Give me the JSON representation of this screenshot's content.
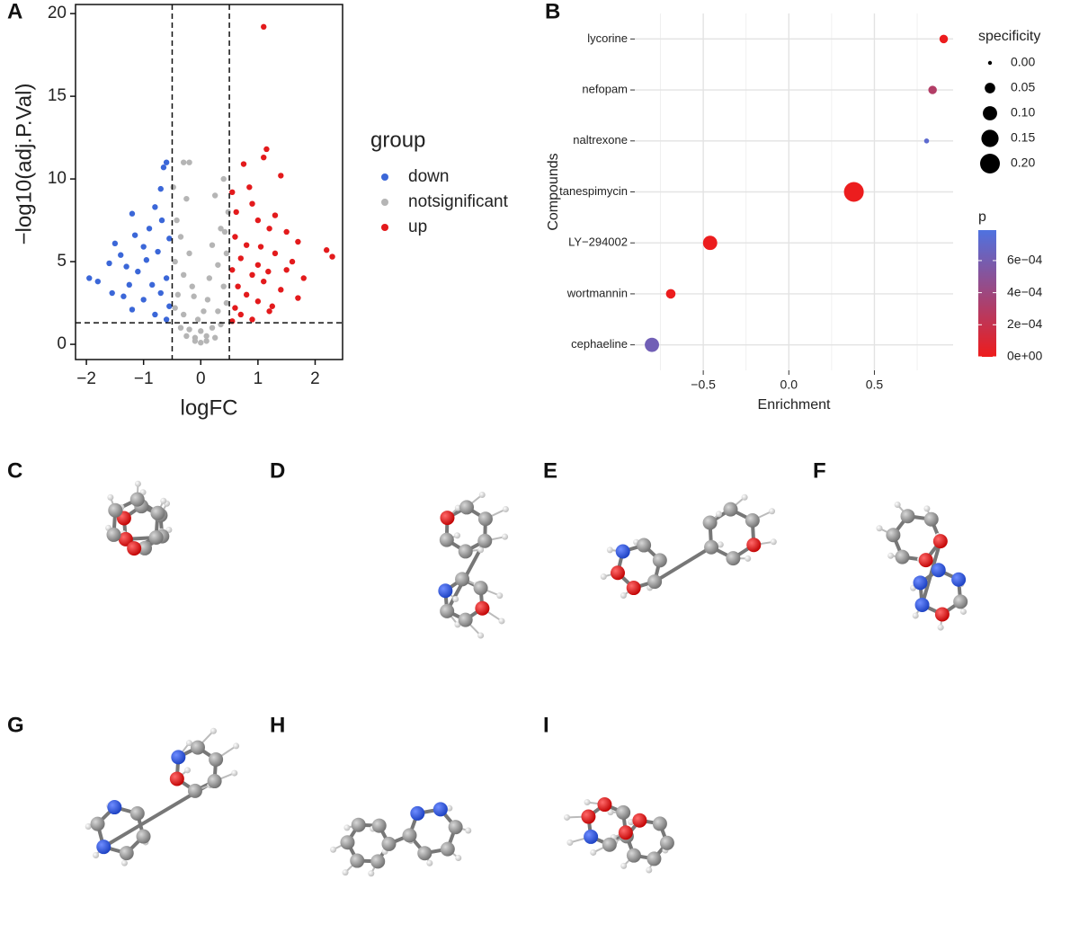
{
  "panels": [
    "A",
    "B",
    "C",
    "D",
    "E",
    "F",
    "G",
    "H",
    "I"
  ],
  "chart_data": [
    {
      "type": "scatter",
      "xlabel": "logFC",
      "ylabel": "−log10(adj.P.Val)",
      "legend_title": "group",
      "xlim": [
        -2.19,
        2.48
      ],
      "ylim": [
        -0.92,
        20.55
      ],
      "xticks": [
        {
          "value": -2,
          "label": "−2"
        },
        {
          "value": -1,
          "label": "−1"
        },
        0,
        1,
        2
      ],
      "yticks": [
        0,
        5,
        10,
        15,
        20
      ],
      "vlines": [
        -0.5,
        0.5
      ],
      "hline": 1.3,
      "grid": false,
      "series": [
        {
          "name": "down",
          "color": "#3b67d8",
          "x": [
            -1.95,
            -1.8,
            -1.5,
            -1.4,
            -1.3,
            -1.6,
            -0.6,
            -0.65,
            -0.8,
            -1.2,
            -0.9,
            -0.7,
            -1.0,
            -0.55,
            -0.75,
            -1.1,
            -0.6,
            -0.85,
            -1.35,
            -0.7,
            -1.0,
            -0.55,
            -1.2,
            -0.8,
            -0.6,
            -1.55,
            -1.15,
            -0.95,
            -0.68,
            -1.25
          ],
          "y": [
            4.0,
            3.8,
            6.1,
            5.4,
            4.7,
            4.9,
            11.0,
            10.7,
            8.3,
            7.9,
            7.0,
            9.4,
            5.9,
            6.4,
            5.6,
            4.4,
            4.0,
            3.6,
            2.9,
            3.1,
            2.7,
            2.3,
            2.1,
            1.8,
            1.5,
            3.1,
            6.6,
            5.1,
            7.5,
            3.6
          ]
        },
        {
          "name": "notsignificant",
          "color": "#b5b5b5",
          "x": [
            0,
            0.1,
            -0.1,
            0.2,
            -0.2,
            0.3,
            -0.3,
            0.4,
            -0.4,
            0.45,
            -0.45,
            0.35,
            -0.35,
            0.25,
            -0.25,
            -0.3,
            -0.2,
            0.15,
            -0.15,
            0.05,
            -0.05,
            0.48,
            -0.48,
            0.4,
            0.3,
            -0.3,
            0.2,
            -0.2,
            0.1,
            -0.1,
            0.25,
            -0.25,
            0.35,
            -0.35,
            0.45,
            -0.45,
            0.0,
            0.12,
            -0.12,
            0.42,
            -0.42
          ],
          "y": [
            0.1,
            0.5,
            0.4,
            1.0,
            0.9,
            2.0,
            1.8,
            3.5,
            3.0,
            5.5,
            5.0,
            7.0,
            6.5,
            9.0,
            8.8,
            11.0,
            11.0,
            4.0,
            3.5,
            2.0,
            1.5,
            8.0,
            9.5,
            10.0,
            4.8,
            4.2,
            6.0,
            5.5,
            0.2,
            0.2,
            0.4,
            0.5,
            1.2,
            1.0,
            2.5,
            2.2,
            0.8,
            2.7,
            2.9,
            6.8,
            7.5
          ]
        },
        {
          "name": "up",
          "color": "#e31a1c",
          "x": [
            1.1,
            1.15,
            1.1,
            1.4,
            2.2,
            2.3,
            1.7,
            1.6,
            1.8,
            1.7,
            1.25,
            0.75,
            0.55,
            0.9,
            1.0,
            1.2,
            0.6,
            0.8,
            1.3,
            0.7,
            1.0,
            0.55,
            0.9,
            1.1,
            0.65,
            1.4,
            0.8,
            1.0,
            0.6,
            1.2,
            0.7,
            0.9,
            0.55,
            1.5,
            1.3,
            0.85,
            1.5,
            1.05,
            0.62,
            1.18
          ],
          "y": [
            19.2,
            11.8,
            11.3,
            10.2,
            5.7,
            5.3,
            6.2,
            5.0,
            4.0,
            2.8,
            2.3,
            10.9,
            9.2,
            8.5,
            7.5,
            7.0,
            6.5,
            6.0,
            5.5,
            5.2,
            4.8,
            4.5,
            4.2,
            3.8,
            3.5,
            3.3,
            3.0,
            2.6,
            2.2,
            2.0,
            1.8,
            1.5,
            1.4,
            4.5,
            7.8,
            9.5,
            6.8,
            5.9,
            8.0,
            4.4
          ]
        }
      ]
    },
    {
      "type": "dot",
      "xlabel": "Enrichment",
      "ylabel": "Compounds",
      "categories": [
        "lycorine",
        "nefopam",
        "naltrexone",
        "tanespimycin",
        "LY−294002",
        "wortmannin",
        "cephaeline"
      ],
      "values": [
        0.905,
        0.84,
        0.805,
        0.38,
        -0.46,
        -0.69,
        -0.8
      ],
      "specificity": [
        0.03,
        0.03,
        0.005,
        0.2,
        0.1,
        0.04,
        0.1
      ],
      "p": [
        1e-05,
        0.0003,
        0.00072,
        1e-05,
        1e-05,
        1e-05,
        0.00062
      ],
      "xlim": [
        -0.9,
        0.96
      ],
      "xticks": [
        {
          "value": -0.5,
          "label": "−0.5"
        },
        {
          "value": 0,
          "label": "0.0"
        },
        0.5
      ],
      "grid": true,
      "size_legend": {
        "title": "specificity",
        "values": [
          {
            "value": 0,
            "label": "0.00"
          },
          {
            "value": 0.05,
            "label": "0.05"
          },
          {
            "value": 0.1,
            "label": "0.10"
          },
          {
            "value": 0.15,
            "label": "0.15"
          },
          {
            "value": 0.2,
            "label": "0.20"
          }
        ]
      },
      "color_legend": {
        "title": "p",
        "lim": [
          0,
          0.00079
        ],
        "low": "#ee1c1c",
        "high": "#4f72e0",
        "ticks": [
          {
            "value": 0,
            "label": "0e+00"
          },
          {
            "value": 0.0002,
            "label": "2e−04"
          },
          {
            "value": 0.0004,
            "label": "4e−04"
          },
          {
            "value": 0.0006,
            "label": "6e−04"
          }
        ]
      }
    }
  ]
}
